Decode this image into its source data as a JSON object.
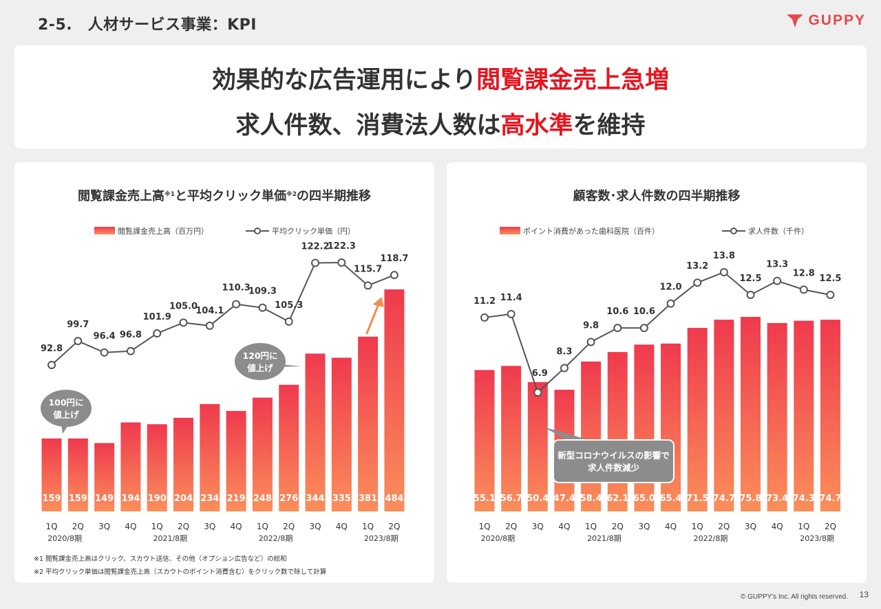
{
  "header": {
    "title": "2-5.　人材サービス事業：KPI",
    "brand": "GUPPY"
  },
  "headline": {
    "line1_black": "効果的な広告運用により",
    "line1_red": "閲覧課金売上急増",
    "line2_black_a": "求人件数、消費法人数は",
    "line2_red": "高水準",
    "line2_black_b": "を維持"
  },
  "colors": {
    "accent_red": "#e8141e",
    "bar_top": "#ef3a4e",
    "bar_bottom": "#fb8e5a",
    "line": "#555555",
    "brand": "#e8464c"
  },
  "chart_data": [
    {
      "type": "bar",
      "title_parts": [
        "閲覧課金売上高",
        "※1",
        "と平均クリック単価",
        "※2",
        "の四半期推移"
      ],
      "categories": [
        "1Q",
        "2Q",
        "3Q",
        "4Q",
        "1Q",
        "2Q",
        "3Q",
        "4Q",
        "1Q",
        "2Q",
        "3Q",
        "4Q",
        "1Q",
        "2Q"
      ],
      "periods": [
        {
          "label": "2020/8期",
          "under_index": 0
        },
        {
          "label": "2021/8期",
          "under_index": 4
        },
        {
          "label": "2022/8期",
          "under_index": 8
        },
        {
          "label": "2023/8期",
          "under_index": 12
        }
      ],
      "series": [
        {
          "name": "閲覧課金売上高（百万円）",
          "kind": "bar",
          "values": [
            159,
            159,
            149,
            194,
            190,
            204,
            234,
            219,
            248,
            276,
            344,
            335,
            381,
            484
          ]
        },
        {
          "name": "平均クリック単価（円）",
          "kind": "line",
          "values": [
            92.8,
            99.7,
            96.4,
            96.8,
            101.9,
            105.0,
            104.1,
            110.3,
            109.3,
            105.3,
            122.2,
            122.3,
            115.7,
            118.7
          ]
        }
      ],
      "bar_labels": [
        "159",
        "159",
        "149",
        "194",
        "190",
        "204",
        "234",
        "219",
        "248",
        "276",
        "344",
        "335",
        "381",
        "484"
      ],
      "line_labels": [
        "92.8",
        "99.7",
        "96.4",
        "96.8",
        "101.9",
        "105.0",
        "104.1",
        "110.3",
        "109.3",
        "105.3",
        "122.2",
        "122.3",
        "115.7",
        "118.7"
      ],
      "callouts": [
        {
          "text": [
            "100円に",
            "値上げ"
          ],
          "at_index": 0
        },
        {
          "text": [
            "120円に",
            "値上げ"
          ],
          "at_index": 9
        }
      ],
      "notes": [
        "※1 閲覧課金売上高はクリック、スカウト送信、その他（オプション広告など）の総和",
        "※2 平均クリック単価は閲覧課金売上高（スカウトのポイント消費含む）をクリック数で除して計算"
      ]
    },
    {
      "type": "bar",
      "title_parts": [
        "顧客数･求人件数の四半期推移"
      ],
      "categories": [
        "1Q",
        "2Q",
        "3Q",
        "4Q",
        "1Q",
        "2Q",
        "3Q",
        "4Q",
        "1Q",
        "2Q",
        "3Q",
        "4Q",
        "1Q",
        "2Q"
      ],
      "periods": [
        {
          "label": "2020/8期",
          "under_index": 0
        },
        {
          "label": "2021/8期",
          "under_index": 4
        },
        {
          "label": "2022/8期",
          "under_index": 8
        },
        {
          "label": "2023/8期",
          "under_index": 12
        }
      ],
      "series": [
        {
          "name": "ポイント消費があった歯科医院（百件）",
          "kind": "bar",
          "values": [
            55.1,
            56.7,
            50.4,
            47.4,
            58.4,
            62.1,
            65.0,
            65.4,
            71.5,
            74.7,
            75.8,
            73.4,
            74.3,
            74.7
          ]
        },
        {
          "name": "求人件数（千件）",
          "kind": "line",
          "values": [
            11.2,
            11.4,
            6.9,
            8.3,
            9.8,
            10.6,
            10.6,
            12.0,
            13.2,
            13.8,
            12.5,
            13.3,
            12.8,
            12.5
          ]
        }
      ],
      "bar_labels": [
        "55.1",
        "56.7",
        "50.4",
        "47.4",
        "58.4",
        "62.1",
        "65.0",
        "65.4",
        "71.5",
        "74.7",
        "75.8",
        "73.4",
        "74.3",
        "74.7"
      ],
      "line_labels": [
        "11.2",
        "11.4",
        "6.9",
        "8.3",
        "9.8",
        "10.6",
        "10.6",
        "12.0",
        "13.2",
        "13.8",
        "12.5",
        "13.3",
        "12.8",
        "12.5"
      ],
      "callouts": [
        {
          "text": [
            "新型コロナウイルスの影響で",
            "求人件数減少"
          ],
          "at_index": 2
        }
      ],
      "notes": []
    }
  ],
  "footer": {
    "copyright": "© GUPPY's Inc. All rights reserved.",
    "page": "13"
  }
}
